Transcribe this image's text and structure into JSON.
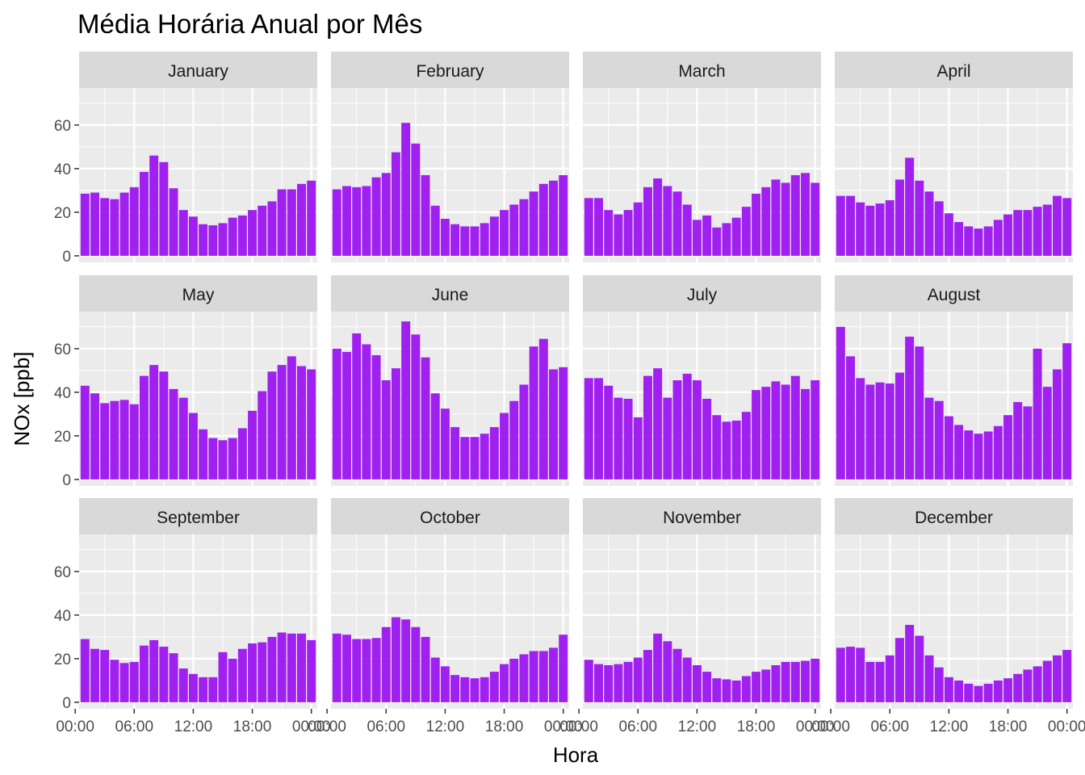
{
  "chart_data": {
    "type": "bar",
    "title": "Média Horária Anual por Mês",
    "xlabel": "Hora",
    "ylabel": "NOx [ppb]",
    "ylim": [
      -3,
      77
    ],
    "yticks": [
      0,
      20,
      40,
      60
    ],
    "xticks": [
      "00:00",
      "06:00",
      "12:00",
      "18:00",
      "00:00"
    ],
    "hours": [
      1,
      2,
      3,
      4,
      5,
      6,
      7,
      8,
      9,
      10,
      11,
      12,
      13,
      14,
      15,
      16,
      17,
      18,
      19,
      20,
      21,
      22,
      23,
      24
    ],
    "bar_color": "#a020f0",
    "grid": true,
    "panels": [
      {
        "name": "January",
        "values": [
          28.5,
          29,
          26.5,
          26,
          29,
          31.5,
          38.5,
          46,
          43,
          31,
          21,
          18,
          14.5,
          14,
          15,
          17.5,
          18.5,
          21,
          23,
          25,
          30.5,
          30.5,
          33,
          34.5
        ]
      },
      {
        "name": "February",
        "values": [
          30.5,
          32,
          31.5,
          32,
          36,
          38,
          47.5,
          61,
          51.5,
          37,
          23,
          17,
          14.5,
          13.5,
          13.5,
          15,
          18,
          21,
          23.5,
          26,
          29.5,
          33,
          34.5,
          37
        ]
      },
      {
        "name": "March",
        "values": [
          26.5,
          26.5,
          21,
          19,
          21,
          24.5,
          31.5,
          35.5,
          32,
          29.5,
          23.5,
          16.5,
          18.5,
          13,
          15,
          17.5,
          22.5,
          28.5,
          31.5,
          35,
          33.5,
          37,
          38,
          33.5
        ]
      },
      {
        "name": "April",
        "values": [
          27.5,
          27.5,
          24.5,
          23,
          24,
          25.5,
          35,
          45,
          34.5,
          29.5,
          25,
          19.5,
          15.5,
          13.5,
          12.5,
          13.5,
          16.5,
          19,
          21,
          21,
          22.5,
          23.5,
          27.5,
          26.5
        ]
      },
      {
        "name": "May",
        "values": [
          43,
          39.5,
          35,
          36,
          36.5,
          34.5,
          47.5,
          52.5,
          49.5,
          41.5,
          37.5,
          30.5,
          23,
          19,
          18,
          19,
          23.5,
          31.5,
          40.5,
          49.5,
          52.5,
          56.5,
          52,
          50.5
        ]
      },
      {
        "name": "June",
        "values": [
          60,
          58.5,
          67,
          62,
          57,
          45.5,
          51,
          72.5,
          66.5,
          56,
          39.5,
          32.5,
          24,
          19.5,
          19.5,
          21,
          24,
          30.5,
          36,
          43.5,
          61,
          64.5,
          50.5,
          51.5
        ]
      },
      {
        "name": "July",
        "values": [
          46.5,
          46.5,
          43,
          37.5,
          37,
          28.5,
          47.5,
          51,
          37.5,
          45.5,
          48.5,
          45.5,
          37,
          29.5,
          26.5,
          27,
          31,
          41,
          42.5,
          45,
          43.5,
          47.5,
          41.5,
          45.5
        ]
      },
      {
        "name": "August",
        "values": [
          70,
          56.5,
          46.5,
          43.5,
          44.5,
          44,
          49,
          65.5,
          61,
          37.5,
          36,
          29,
          25,
          22.5,
          21,
          22,
          24.5,
          29.5,
          35.5,
          33.5,
          60,
          42.5,
          50.5,
          62.5
        ]
      },
      {
        "name": "September",
        "values": [
          29,
          24.5,
          24,
          19.5,
          18,
          18.5,
          26,
          28.5,
          25.5,
          22.5,
          15.5,
          13,
          11.5,
          11.5,
          23,
          20,
          24.5,
          27,
          27.5,
          30,
          32,
          31.5,
          31.5,
          28.5
        ]
      },
      {
        "name": "October",
        "values": [
          31.5,
          31,
          29,
          29,
          29.5,
          34.5,
          39,
          38,
          34.5,
          30,
          20.5,
          16.5,
          12.5,
          11.5,
          11,
          11.5,
          14,
          17.5,
          20,
          22,
          23.5,
          23.5,
          25,
          31
        ]
      },
      {
        "name": "November",
        "values": [
          19.5,
          17.5,
          17,
          17.5,
          18.5,
          20.5,
          24,
          31.5,
          28,
          24.5,
          20.5,
          17,
          14,
          11,
          10.5,
          10,
          12,
          14,
          15,
          17,
          18.5,
          18.5,
          19,
          20
        ]
      },
      {
        "name": "December",
        "values": [
          25,
          25.5,
          25,
          18.5,
          18.5,
          21.5,
          29.5,
          35.5,
          30.5,
          21.5,
          16,
          11.5,
          10,
          8.5,
          7.5,
          8.5,
          10,
          11,
          13,
          15,
          16.5,
          19,
          21.5,
          24
        ]
      }
    ]
  }
}
